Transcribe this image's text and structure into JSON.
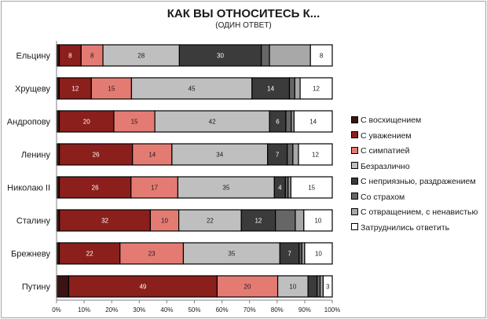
{
  "chart_data": {
    "type": "bar",
    "orientation": "horizontal",
    "stacked": true,
    "title": "КАК ВЫ ОТНОСИТЕСЬ К...",
    "subtitle": "(ОДИН ОТВЕТ)",
    "categories": [
      "Ельцину",
      "Хрущеву",
      "Андропову",
      "Ленину",
      "Николаю II",
      "Сталину",
      "Брежневу",
      "Путину"
    ],
    "series": [
      {
        "name": "С восхищением",
        "color": "#3a1413",
        "values": [
          1,
          1,
          1,
          1,
          1,
          1,
          1,
          4
        ],
        "labels": [
          "",
          "",
          "",
          "",
          "",
          "",
          "",
          ""
        ]
      },
      {
        "name": "С уважением",
        "color": "#8b1f1c",
        "values": [
          8,
          12,
          20,
          26,
          26,
          32,
          22,
          49
        ],
        "labels": [
          "8",
          "12",
          "20",
          "26",
          "26",
          "32",
          "22",
          "49"
        ]
      },
      {
        "name": "С симпатией",
        "color": "#e47b73",
        "values": [
          8,
          15,
          15,
          14,
          17,
          10,
          23,
          20
        ],
        "labels": [
          "8",
          "15",
          "15",
          "14",
          "17",
          "10",
          "23",
          "20"
        ]
      },
      {
        "name": "Безразлично",
        "color": "#bfbfbf",
        "values": [
          28,
          45,
          42,
          34,
          35,
          22,
          35,
          10
        ],
        "labels": [
          "28",
          "45",
          "42",
          "34",
          "35",
          "22",
          "35",
          "10"
        ]
      },
      {
        "name": "С неприязнью, раздражением",
        "color": "#3b3b3b",
        "values": [
          30,
          14,
          6,
          7,
          4,
          12,
          7,
          3
        ],
        "labels": [
          "30",
          "14",
          "6",
          "7",
          "4",
          "12",
          "7",
          ""
        ]
      },
      {
        "name": "Со страхом",
        "color": "#666666",
        "values": [
          3,
          2,
          2,
          2,
          1,
          7,
          1,
          1
        ],
        "labels": [
          "",
          "",
          "",
          "",
          "",
          "",
          "",
          ""
        ]
      },
      {
        "name": "С отвращением, с ненавистью",
        "color": "#a8a8a8",
        "values": [
          15,
          2,
          1,
          2,
          1,
          3,
          1,
          1
        ],
        "labels": [
          "",
          "",
          "",
          "",
          "",
          "",
          "",
          ""
        ]
      },
      {
        "name": "Затруднились ответить",
        "color": "#ffffff",
        "values": [
          8,
          12,
          14,
          12,
          15,
          10,
          10,
          3
        ],
        "labels": [
          "8",
          "12",
          "14",
          "12",
          "15",
          "10",
          "10",
          "3"
        ]
      }
    ],
    "xlim": [
      0,
      100
    ],
    "xticks": [
      "0%",
      "10%",
      "20%",
      "30%",
      "40%",
      "50%",
      "60%",
      "70%",
      "80%",
      "90%",
      "100%"
    ],
    "legend": "right",
    "grid": false
  }
}
